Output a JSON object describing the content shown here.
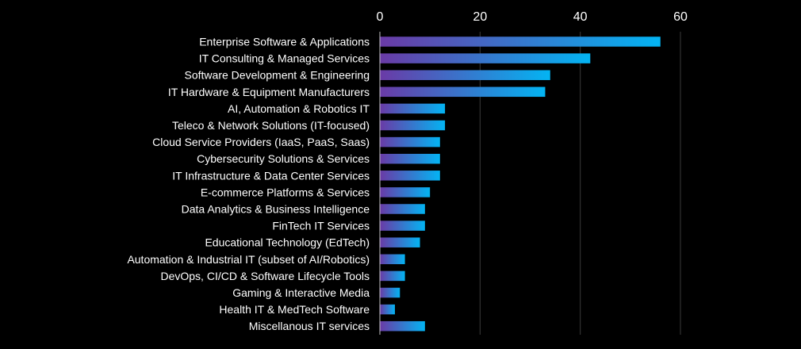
{
  "chart_data": {
    "type": "bar",
    "orientation": "horizontal",
    "title": "",
    "xlabel": "",
    "ylabel": "",
    "xlim": [
      0,
      60
    ],
    "x_ticks": [
      0,
      20,
      40,
      60
    ],
    "grid": true,
    "axis_position": "top",
    "categories": [
      "Enterprise Software & Applications",
      "IT Consulting & Managed Services",
      "Software Development & Engineering",
      "IT Hardware & Equipment Manufacturers",
      "AI, Automation & Robotics IT",
      "Teleco & Network Solutions (IT-focused)",
      "Cloud Service Providers (IaaS, PaaS, Saas)",
      "Cybersecurity Solutions & Services",
      "IT Infrastructure & Data Center Services",
      "E-commerce Platforms & Services",
      "Data Analytics & Business Intelligence",
      "FinTech IT Services",
      "Educational Technology (EdTech)",
      "Automation & Industrial IT (subset of AI/Robotics)",
      "DevOps, CI/CD & Software Lifecycle Tools",
      "Gaming & Interactive Media",
      "Health IT & MedTech Software",
      "Miscellanous IT services"
    ],
    "values": [
      56,
      42,
      34,
      33,
      13,
      13,
      12,
      12,
      12,
      10,
      9,
      9,
      8,
      5,
      5,
      4,
      3,
      9
    ],
    "colors": {
      "background": "#000000",
      "bar_gradient_start": "#6a3aa6",
      "bar_gradient_end": "#03b4f3",
      "grid": "#3a3a3a",
      "text": "#ffffff"
    }
  }
}
